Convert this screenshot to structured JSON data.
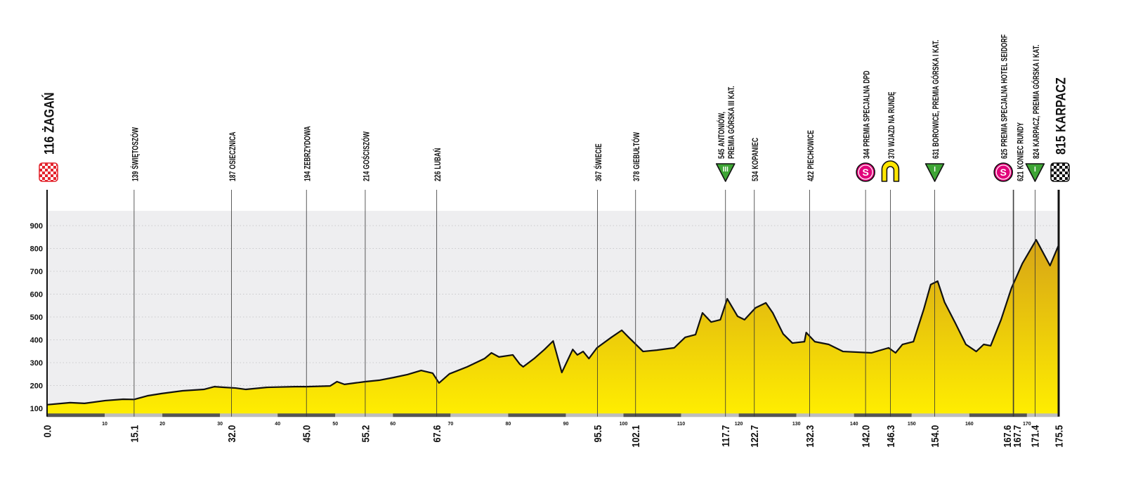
{
  "chart_data": {
    "type": "area",
    "x": [
      0,
      4.0,
      6.5,
      10.1,
      13.2,
      15.1,
      17.4,
      19.9,
      23.5,
      27.2,
      29.0,
      30.8,
      32.7,
      34.5,
      38.1,
      43.0,
      45.1,
      49.1,
      50.3,
      51.6,
      55.2,
      57.6,
      60.1,
      62.5,
      64.9,
      66.9,
      68.0,
      69.8,
      72.9,
      75.9,
      77.1,
      78.4,
      80.8,
      82.0,
      82.6,
      84.5,
      86.3,
      87.8,
      89.3,
      91.2,
      92.0,
      93.0,
      94.0,
      95.4,
      97.9,
      99.7,
      100.9,
      103.4,
      105.8,
      108.8,
      110.7,
      112.5,
      113.7,
      115.2,
      116.8,
      118.0,
      119.8,
      121.0,
      122.9,
      124.7,
      125.9,
      127.7,
      129.3,
      131.4,
      131.7,
      133.2,
      135.6,
      138.1,
      143.0,
      146.0,
      147.2,
      148.4,
      150.3,
      152.1,
      153.3,
      154.5,
      155.7,
      157.6,
      159.4,
      161.2,
      162.5,
      163.7,
      165.5,
      167.3,
      169.2,
      171.6,
      174.0,
      175.5
    ],
    "values": [
      116,
      125,
      122,
      134,
      140,
      139,
      155,
      165,
      177,
      183,
      195,
      192,
      189,
      183,
      192,
      195,
      195,
      198,
      217,
      205,
      217,
      223,
      235,
      248,
      266,
      254,
      211,
      251,
      282,
      318,
      343,
      325,
      334,
      294,
      282,
      318,
      358,
      395,
      257,
      358,
      334,
      349,
      318,
      365,
      411,
      442,
      411,
      349,
      355,
      365,
      411,
      423,
      518,
      478,
      488,
      580,
      503,
      488,
      540,
      562,
      518,
      426,
      386,
      392,
      432,
      392,
      380,
      349,
      343,
      365,
      343,
      380,
      392,
      534,
      642,
      657,
      565,
      472,
      380,
      349,
      380,
      374,
      488,
      626,
      734,
      838,
      725,
      815
    ],
    "xlim": [
      0,
      175.5
    ],
    "xticks": [
      10,
      20,
      30,
      40,
      50,
      60,
      70,
      80,
      90,
      100,
      110,
      120,
      130,
      140,
      150,
      160,
      170
    ],
    "ylim": [
      70,
      965
    ],
    "yticks": [
      100,
      200,
      300,
      400,
      500,
      600,
      700,
      800,
      900
    ],
    "grid": true,
    "fill_top": "#d0981a",
    "fill_bottom": "#ffee00",
    "line_color": "#111111",
    "waypoints": [
      {
        "km": {
          "value": 0,
          "label": "0.0"
        },
        "elevation": 116,
        "name": "ŻAGAŃ",
        "icon": "start"
      },
      {
        "km": 15.1,
        "elevation": 139,
        "name": "ŚWIĘTOSZÓW"
      },
      {
        "km": {
          "value": 32,
          "label": "32.0"
        },
        "elevation": 187,
        "name": "OSIECZNICA"
      },
      {
        "km": {
          "value": 45,
          "label": "45.0"
        },
        "elevation": 194,
        "name": "ZEBRZYDOWA"
      },
      {
        "km": 55.2,
        "elevation": 214,
        "name": "GOŚCISZÓW"
      },
      {
        "km": 67.6,
        "elevation": 226,
        "name": "LUBAŃ"
      },
      {
        "km": 95.5,
        "elevation": 367,
        "name": "ŚWIECIE"
      },
      {
        "km": 102.1,
        "elevation": 378,
        "name": "GIEBUŁTÓW"
      },
      {
        "km": 117.7,
        "elevation": 545,
        "name": "ANTONIÓW,",
        "name2": "PREMIA GÓRSKA III KAT.",
        "icon": "climb",
        "badge": "III"
      },
      {
        "km": 122.7,
        "elevation": 534,
        "name": "KOPANIEC"
      },
      {
        "km": 132.3,
        "elevation": 422,
        "name": "PIECHOWICE"
      },
      {
        "km": {
          "value": 142,
          "label": "142.0"
        },
        "elevation": 344,
        "name": "PREMIA SPECJALNA DPD",
        "icon": "sprint",
        "badge": "S"
      },
      {
        "km": 146.3,
        "elevation": 370,
        "name": "WJAZD NA RUNDĘ",
        "icon": "round"
      },
      {
        "km": {
          "value": 154,
          "label": "154.0"
        },
        "elevation": 631,
        "name": "BOROWICE, PREMIA GÓRSKA I KAT.",
        "icon": "climb",
        "badge": "I"
      },
      {
        "km": 167.6,
        "elevation": 625,
        "name": "PREMIA SPECJALNA HOTEL SEIDORF",
        "icon": "sprint",
        "badge": "S"
      },
      {
        "km": 167.7,
        "elevation": 621,
        "name": "KONIEC RUNDY"
      },
      {
        "km": 171.4,
        "elevation": 824,
        "name": "KARPACZ, PREMIA GÓRSKA I KAT.",
        "icon": "climb",
        "badge": "I"
      },
      {
        "km": 175.5,
        "elevation": 815,
        "name": "KARPACZ",
        "icon": "finish"
      }
    ]
  }
}
